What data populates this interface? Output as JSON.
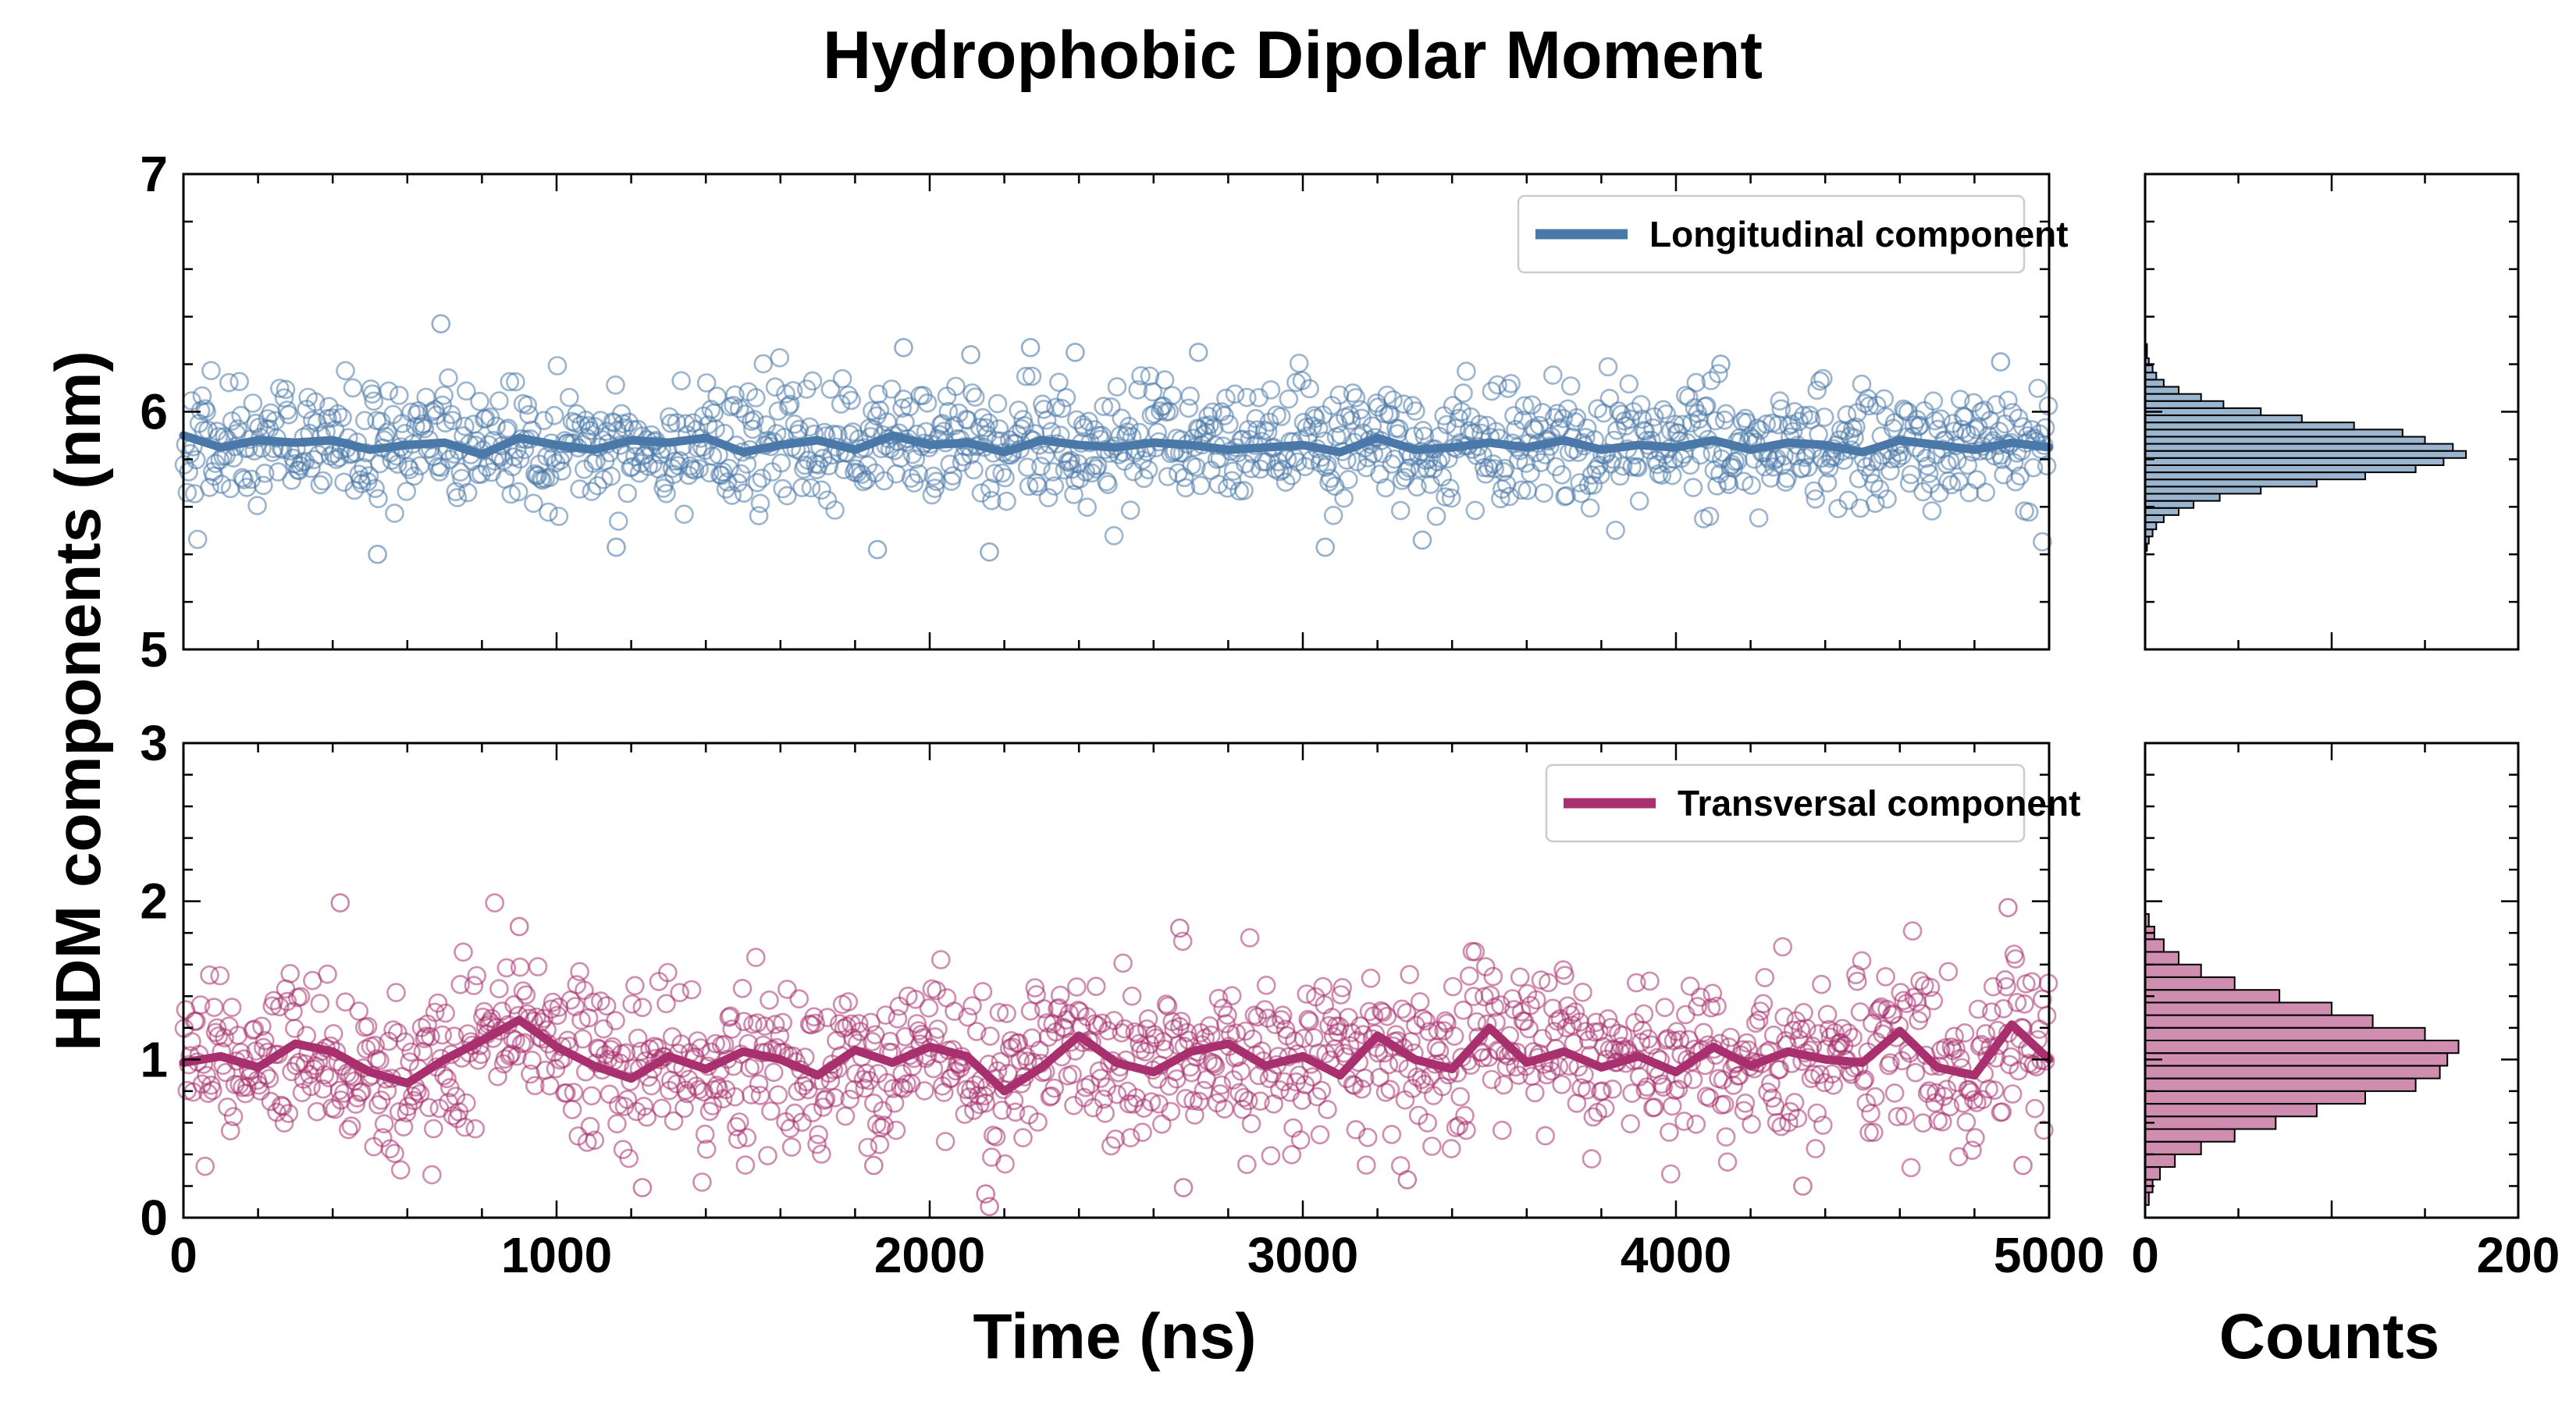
{
  "title": "Hydrophobic Dipolar Moment",
  "ylabel": "HDM components (nm)",
  "xlabel": "Time (ns)",
  "hist_xlabel": "Counts",
  "x_ticks": [
    "0",
    "1000",
    "2000",
    "3000",
    "4000",
    "5000"
  ],
  "hist_x_ticks": [
    "0",
    "200"
  ],
  "top_y_ticks": [
    "5",
    "6",
    "7"
  ],
  "bottom_y_ticks": [
    "0",
    "1",
    "2",
    "3"
  ],
  "legend": {
    "top": "Longitudinal component",
    "bottom": "Transversal component"
  },
  "colors": {
    "longitudinal": "#4a78a8",
    "transversal": "#a8306e"
  },
  "chart_data": [
    {
      "type": "scatter",
      "panel": "top",
      "xlim": [
        0,
        5000
      ],
      "ylim": [
        5,
        7
      ],
      "grid": false,
      "legend_position": "top-right",
      "scatter_summary": {
        "n_points": 1250,
        "mean": 5.86,
        "std": 0.15,
        "min": 5.4,
        "max": 6.37
      },
      "outliers": [
        {
          "x": 690,
          "y": 6.37
        },
        {
          "x": 520,
          "y": 5.4
        },
        {
          "x": 1160,
          "y": 5.43
        },
        {
          "x": 1930,
          "y": 6.27
        },
        {
          "x": 2270,
          "y": 6.27
        },
        {
          "x": 2110,
          "y": 6.24
        },
        {
          "x": 2390,
          "y": 6.25
        },
        {
          "x": 2720,
          "y": 6.25
        },
        {
          "x": 3060,
          "y": 5.43
        },
        {
          "x": 1860,
          "y": 5.42
        },
        {
          "x": 2160,
          "y": 5.41
        },
        {
          "x": 3320,
          "y": 5.46
        },
        {
          "x": 4120,
          "y": 6.2
        },
        {
          "x": 4870,
          "y": 6.21
        }
      ],
      "series": [
        {
          "name": "Longitudinal component",
          "x": [
            0,
            100,
            200,
            300,
            400,
            500,
            600,
            700,
            800,
            900,
            1000,
            1100,
            1200,
            1300,
            1400,
            1500,
            1600,
            1700,
            1800,
            1900,
            2000,
            2100,
            2200,
            2300,
            2400,
            2500,
            2600,
            2700,
            2800,
            2900,
            3000,
            3100,
            3200,
            3300,
            3400,
            3500,
            3600,
            3700,
            3800,
            3900,
            4000,
            4100,
            4200,
            4300,
            4400,
            4500,
            4600,
            4700,
            4800,
            4900,
            5000
          ],
          "y": [
            5.9,
            5.85,
            5.88,
            5.87,
            5.88,
            5.84,
            5.86,
            5.87,
            5.82,
            5.89,
            5.86,
            5.84,
            5.88,
            5.87,
            5.89,
            5.83,
            5.86,
            5.88,
            5.84,
            5.9,
            5.86,
            5.87,
            5.83,
            5.88,
            5.86,
            5.85,
            5.87,
            5.86,
            5.84,
            5.85,
            5.86,
            5.83,
            5.89,
            5.84,
            5.85,
            5.87,
            5.85,
            5.88,
            5.84,
            5.86,
            5.85,
            5.88,
            5.84,
            5.87,
            5.86,
            5.83,
            5.88,
            5.86,
            5.84,
            5.87,
            5.85
          ]
        }
      ],
      "histogram": {
        "xlim": [
          0,
          200
        ],
        "bin_centers": [
          5.43,
          5.46,
          5.49,
          5.52,
          5.55,
          5.58,
          5.61,
          5.64,
          5.67,
          5.7,
          5.73,
          5.76,
          5.79,
          5.82,
          5.85,
          5.88,
          5.91,
          5.94,
          5.97,
          6.0,
          6.03,
          6.06,
          6.09,
          6.12,
          6.15,
          6.18,
          6.21,
          6.24,
          6.27
        ],
        "counts": [
          1,
          2,
          4,
          6,
          10,
          18,
          26,
          40,
          62,
          92,
          118,
          145,
          160,
          172,
          165,
          150,
          138,
          112,
          84,
          62,
          42,
          30,
          18,
          10,
          6,
          4,
          2,
          1,
          1
        ]
      }
    },
    {
      "type": "scatter",
      "panel": "bottom",
      "xlim": [
        0,
        5000
      ],
      "ylim": [
        0,
        3
      ],
      "grid": false,
      "legend_position": "top-right",
      "scatter_summary": {
        "n_points": 1250,
        "mean": 1.0,
        "std": 0.3,
        "min": 0.07,
        "max": 1.99
      },
      "outliers": [
        {
          "x": 420,
          "y": 1.99
        },
        {
          "x": 4890,
          "y": 1.96
        },
        {
          "x": 900,
          "y": 1.84
        },
        {
          "x": 2670,
          "y": 1.83
        },
        {
          "x": 2150,
          "y": 0.15
        },
        {
          "x": 2160,
          "y": 0.07
        },
        {
          "x": 1230,
          "y": 0.19
        },
        {
          "x": 2680,
          "y": 0.19
        },
        {
          "x": 3280,
          "y": 0.24
        },
        {
          "x": 4340,
          "y": 0.2
        },
        {
          "x": 1850,
          "y": 0.33
        },
        {
          "x": 4930,
          "y": 0.33
        }
      ],
      "series": [
        {
          "name": "Transversal component",
          "x": [
            0,
            100,
            200,
            300,
            400,
            500,
            600,
            700,
            800,
            900,
            1000,
            1100,
            1200,
            1300,
            1400,
            1500,
            1600,
            1700,
            1800,
            1900,
            2000,
            2100,
            2200,
            2300,
            2400,
            2500,
            2600,
            2700,
            2800,
            2900,
            3000,
            3100,
            3200,
            3300,
            3400,
            3500,
            3600,
            3700,
            3800,
            3900,
            4000,
            4100,
            4200,
            4300,
            4400,
            4500,
            4600,
            4700,
            4800,
            4900,
            5000
          ],
          "y": [
            0.98,
            1.02,
            0.95,
            1.1,
            1.05,
            0.92,
            0.85,
            1.0,
            1.12,
            1.25,
            1.08,
            0.96,
            0.88,
            1.02,
            0.94,
            1.05,
            1.0,
            0.9,
            1.06,
            0.98,
            1.08,
            1.02,
            0.8,
            0.95,
            1.15,
            0.98,
            0.92,
            1.05,
            1.1,
            0.96,
            1.02,
            0.9,
            1.15,
            1.0,
            0.94,
            1.2,
            0.98,
            1.05,
            0.95,
            1.02,
            0.92,
            1.08,
            0.96,
            1.05,
            1.0,
            0.98,
            1.18,
            0.95,
            0.9,
            1.22,
            1.0
          ]
        }
      ],
      "histogram": {
        "xlim": [
          0,
          200
        ],
        "bin_centers": [
          0.12,
          0.2,
          0.28,
          0.36,
          0.44,
          0.52,
          0.6,
          0.68,
          0.76,
          0.84,
          0.92,
          1.0,
          1.08,
          1.16,
          1.24,
          1.32,
          1.4,
          1.48,
          1.56,
          1.64,
          1.72,
          1.8,
          1.88
        ],
        "counts": [
          2,
          4,
          8,
          16,
          30,
          48,
          70,
          92,
          118,
          145,
          158,
          162,
          168,
          150,
          122,
          100,
          72,
          48,
          30,
          18,
          10,
          5,
          2
        ]
      }
    }
  ]
}
